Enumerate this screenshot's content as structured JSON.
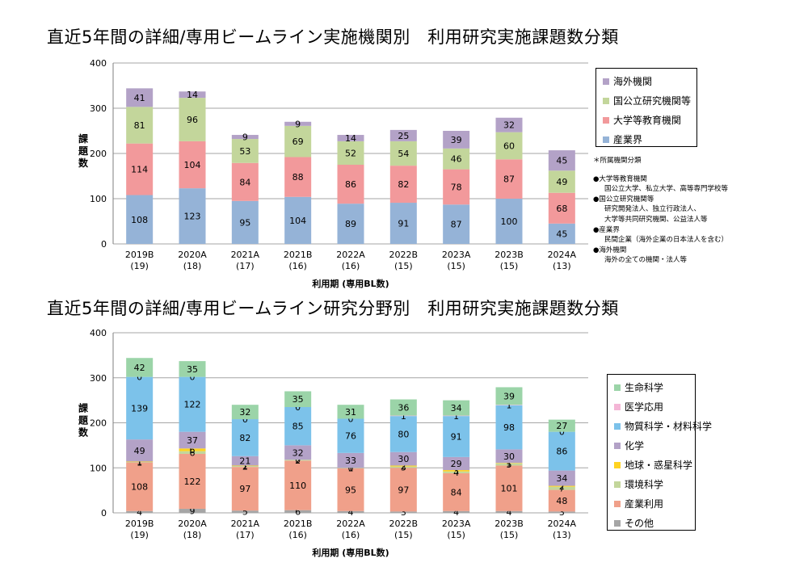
{
  "page": {
    "title1": "直近5年間の詳細/専用ビームライン実施機関別　利用研究実施課題数分類",
    "title2": "直近5年間の詳細/専用ビームライン研究分野別　利用研究実施課題数分類"
  },
  "notes": {
    "heading": "＊所属機関分類",
    "items": [
      {
        "label": "●大学等教育機関",
        "lines": [
          "国公立大学、私立大学、高等専門学校等"
        ]
      },
      {
        "label": "●国公立研究機関等",
        "lines": [
          "研究開発法人、独立行政法人、",
          "大学等共同研究機関、公益法人等"
        ]
      },
      {
        "label": "●産業界",
        "lines": [
          "民間企業（海外企業の日本法人を含む）"
        ]
      },
      {
        "label": "●海外機関",
        "lines": [
          "海外の全ての機関・法人等"
        ]
      }
    ]
  },
  "chart_data": [
    {
      "type": "bar",
      "stacked": true,
      "categories": [
        "2019B\n(19)",
        "2020A\n(18)",
        "2021A\n(17)",
        "2021B\n(16)",
        "2022A\n(16)",
        "2022B\n(15)",
        "2023A\n(15)",
        "2023B\n(15)",
        "2024A\n(13)"
      ],
      "xlabel": "利用期 (専用BL数)",
      "ylabel": "課題数",
      "ylim": [
        0,
        400
      ],
      "yticks": [
        0,
        100,
        200,
        300,
        400
      ],
      "grid": true,
      "legend_position": "right",
      "series": [
        {
          "name": "産業界",
          "color": "#95b3d7",
          "values": [
            108,
            123,
            95,
            104,
            89,
            91,
            87,
            100,
            45
          ]
        },
        {
          "name": "大学等教育機関",
          "color": "#f2999b",
          "values": [
            114,
            104,
            84,
            88,
            86,
            82,
            78,
            87,
            68
          ]
        },
        {
          "name": "国公立研究機関等",
          "color": "#c3d69b",
          "values": [
            81,
            96,
            53,
            69,
            52,
            54,
            46,
            60,
            49
          ]
        },
        {
          "name": "海外機関",
          "color": "#b3a2c7",
          "values": [
            41,
            14,
            9,
            9,
            14,
            25,
            39,
            32,
            45
          ]
        }
      ],
      "legend_order": [
        "海外機関",
        "国公立研究機関等",
        "大学等教育機関",
        "産業界"
      ]
    },
    {
      "type": "bar",
      "stacked": true,
      "categories": [
        "2019B\n(19)",
        "2020A\n(18)",
        "2021A\n(17)",
        "2021B\n(16)",
        "2022A\n(16)",
        "2022B\n(15)",
        "2023A\n(15)",
        "2023B\n(15)",
        "2024A\n(13)"
      ],
      "xlabel": "利用期 (専用BL数)",
      "ylabel": "課題数",
      "ylim": [
        0,
        400
      ],
      "yticks": [
        0,
        100,
        200,
        300,
        400
      ],
      "grid": true,
      "legend_position": "right",
      "series": [
        {
          "name": "その他",
          "color": "#a6a6a6",
          "values": [
            4,
            9,
            5,
            6,
            4,
            3,
            4,
            4,
            3
          ]
        },
        {
          "name": "産業利用",
          "color": "#f0a08a",
          "values": [
            108,
            122,
            97,
            110,
            95,
            97,
            84,
            101,
            48
          ]
        },
        {
          "name": "環境科学",
          "color": "#c3d69b",
          "values": [
            1,
            6,
            2,
            2,
            1,
            3,
            4,
            5,
            7
          ]
        },
        {
          "name": "地球・惑星科学",
          "color": "#ffd321",
          "values": [
            1,
            6,
            1,
            0,
            0,
            2,
            3,
            1,
            2
          ]
        },
        {
          "name": "化学",
          "color": "#b3a2c7",
          "values": [
            49,
            37,
            21,
            32,
            33,
            30,
            29,
            30,
            34
          ]
        },
        {
          "name": "物質科学・材料科学",
          "color": "#7cc2ea",
          "values": [
            139,
            122,
            82,
            85,
            76,
            80,
            91,
            98,
            86
          ]
        },
        {
          "name": "医学応用",
          "color": "#f4b6d6",
          "values": [
            0,
            0,
            0,
            0,
            0,
            1,
            1,
            1,
            0
          ]
        },
        {
          "name": "生命科学",
          "color": "#9bd4a8",
          "values": [
            42,
            35,
            32,
            35,
            31,
            36,
            34,
            39,
            27
          ]
        }
      ],
      "legend_order": [
        "生命科学",
        "医学応用",
        "物質科学・材料科学",
        "化学",
        "地球・惑星科学",
        "環境科学",
        "産業利用",
        "その他"
      ]
    }
  ]
}
